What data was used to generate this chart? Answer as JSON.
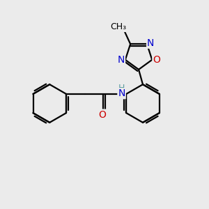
{
  "background_color": "#ebebeb",
  "bond_color": "#000000",
  "bond_width": 1.6,
  "atom_colors": {
    "N": "#0000cd",
    "O": "#cc0000",
    "H": "#5f9ea0",
    "C": "#000000"
  },
  "font_size_large": 10,
  "font_size_small": 8,
  "fig_width": 3.0,
  "fig_height": 3.0,
  "dpi": 100,
  "xlim": [
    0,
    10
  ],
  "ylim": [
    0,
    10
  ]
}
